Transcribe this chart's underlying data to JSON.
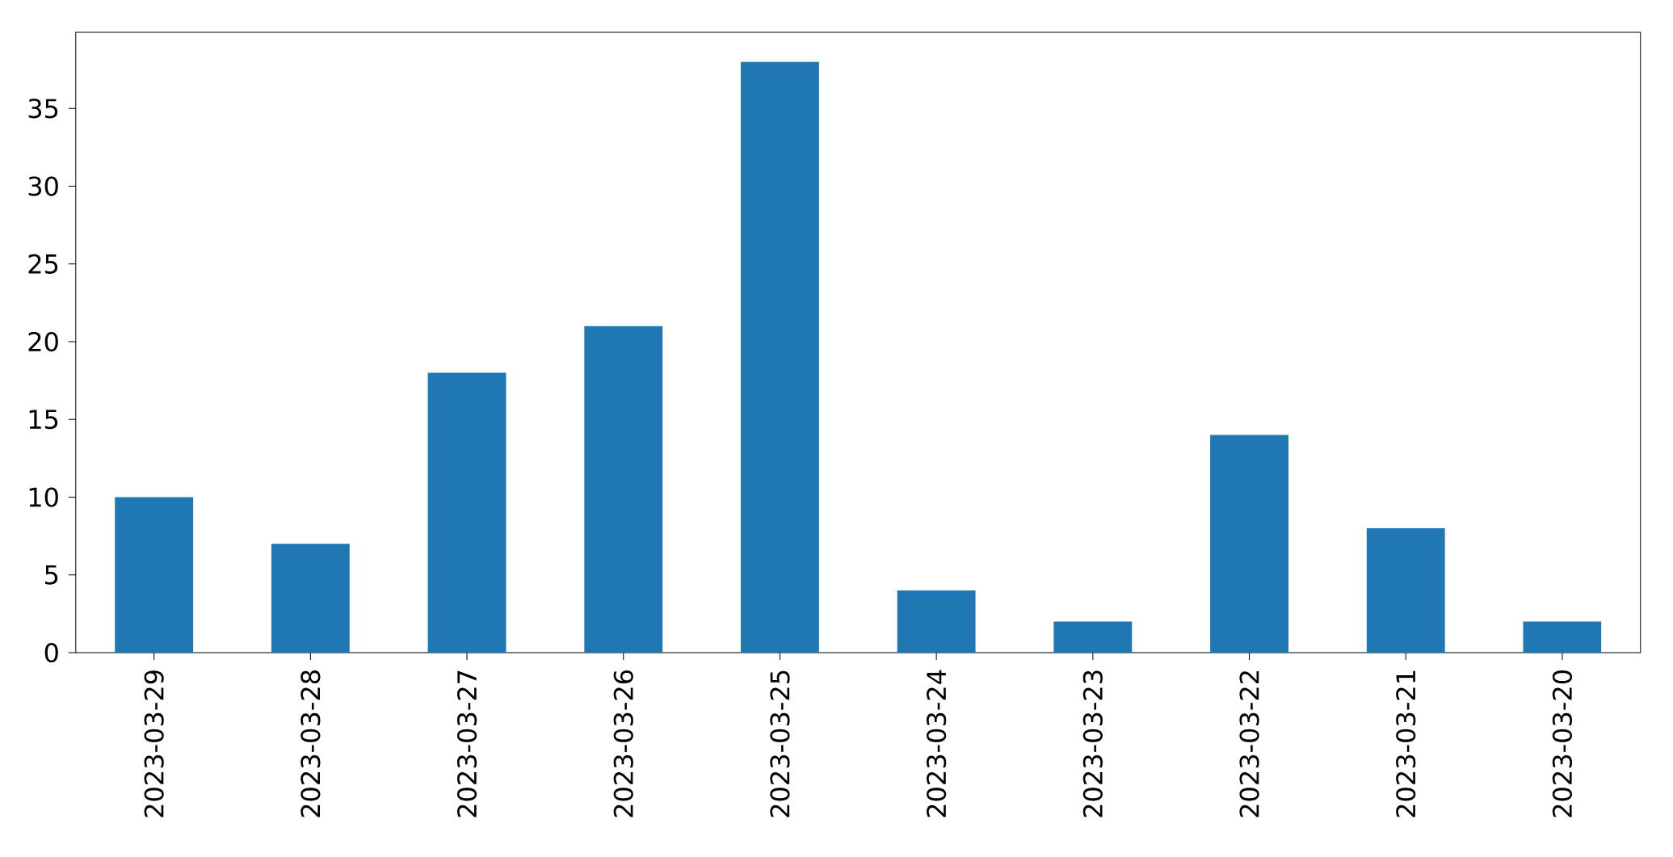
{
  "chart_data": {
    "type": "bar",
    "categories": [
      "2023-03-29",
      "2023-03-28",
      "2023-03-27",
      "2023-03-26",
      "2023-03-25",
      "2023-03-24",
      "2023-03-23",
      "2023-03-22",
      "2023-03-21",
      "2023-03-20"
    ],
    "values": [
      10,
      7,
      18,
      21,
      38,
      4,
      2,
      14,
      8,
      2
    ],
    "color": "#1f77b4",
    "ylim": [
      0,
      39.9
    ],
    "yticks": [
      0,
      5,
      10,
      15,
      20,
      25,
      30,
      35
    ]
  }
}
